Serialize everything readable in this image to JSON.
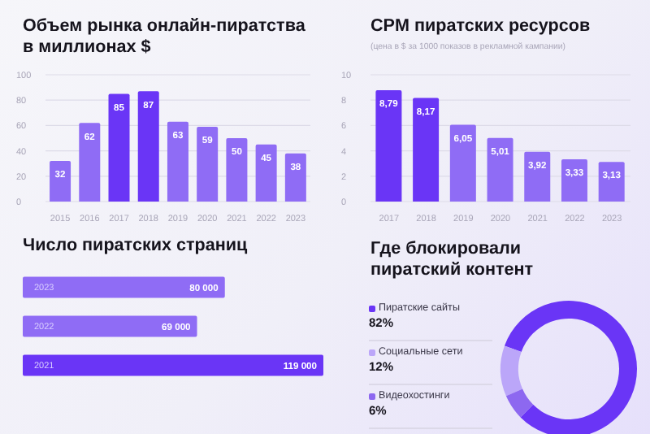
{
  "chart_data": [
    {
      "type": "bar",
      "title": "Объем рынка онлайн-пиратства в миллионах $",
      "categories": [
        "2015",
        "2016",
        "2017",
        "2018",
        "2019",
        "2020",
        "2021",
        "2022",
        "2023"
      ],
      "values": [
        32,
        62,
        85,
        87,
        63,
        59,
        50,
        45,
        38
      ],
      "colors": [
        "#8f6cf5",
        "#8f6cf5",
        "#6a35f6",
        "#6a35f6",
        "#8f6cf5",
        "#8f6cf5",
        "#8f6cf5",
        "#8f6cf5",
        "#8f6cf5"
      ],
      "ylim": [
        0,
        100
      ],
      "yticks": [
        0,
        20,
        40,
        60,
        80,
        100
      ],
      "grid": "y",
      "data_labels": true
    },
    {
      "type": "bar",
      "title": "CPM пиратских ресурсов",
      "subtitle": "(цена в $ за 1000 показов в рекламной кампании)",
      "categories": [
        "2017",
        "2018",
        "2019",
        "2020",
        "2021",
        "2022",
        "2023"
      ],
      "values": [
        8.79,
        8.17,
        6.05,
        5.01,
        3.92,
        3.33,
        3.13
      ],
      "value_labels": [
        "8,79",
        "8,17",
        "6,05",
        "5,01",
        "3,92",
        "3,33",
        "3,13"
      ],
      "colors": [
        "#6a35f6",
        "#6a35f6",
        "#8f6cf5",
        "#8f6cf5",
        "#8f6cf5",
        "#8f6cf5",
        "#8f6cf5"
      ],
      "ylim": [
        0,
        10
      ],
      "yticks": [
        0,
        2,
        4,
        6,
        8,
        10
      ],
      "grid": "y"
    },
    {
      "type": "bar",
      "orientation": "horizontal",
      "title": "Число пиратских страниц",
      "categories": [
        "2023",
        "2022",
        "2021"
      ],
      "values": [
        80000,
        69000,
        119000
      ],
      "value_labels": [
        "80 000",
        "69 000",
        "119 000"
      ],
      "colors": [
        "#8f6cf5",
        "#8f6cf5",
        "#6a35f6"
      ]
    },
    {
      "type": "donut",
      "title": "Где блокировали пиратский контент",
      "categories": [
        "Пиратские сайты",
        "Социальные сети",
        "Видеохостинги"
      ],
      "values": [
        82,
        12,
        6
      ],
      "value_labels": [
        "82%",
        "12%",
        "6%"
      ],
      "colors": [
        "#6a35f6",
        "#bba6f9",
        "#8d68f0"
      ],
      "legend": "left"
    }
  ]
}
